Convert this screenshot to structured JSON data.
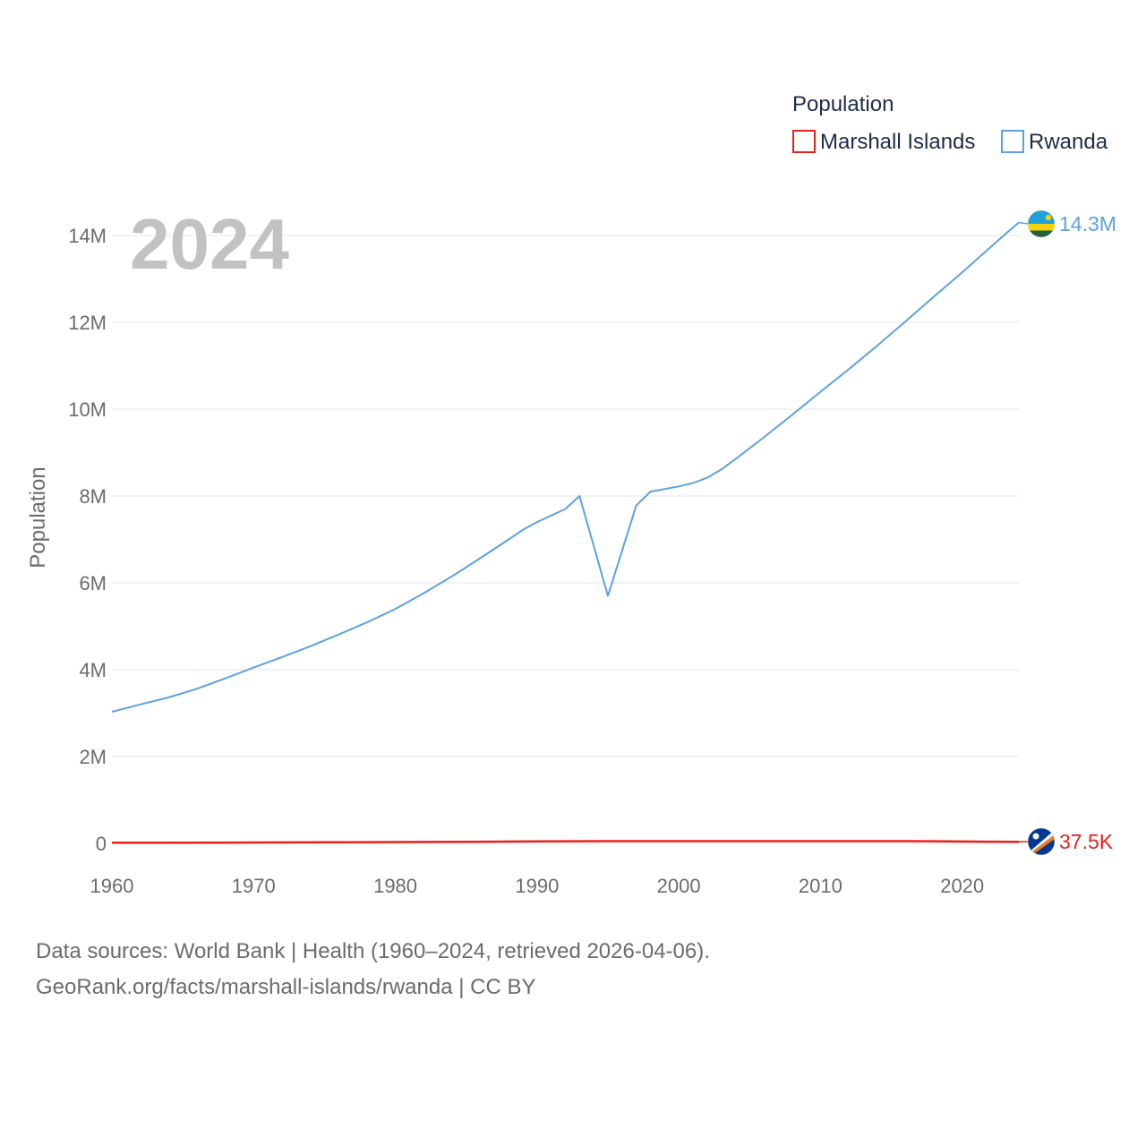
{
  "chart_data": {
    "type": "line",
    "legend_title": "Population",
    "ylabel": "Population",
    "year_label": "2024",
    "ylim": [
      0,
      14000000
    ],
    "xlim": [
      1960,
      2024
    ],
    "y_ticks": [
      {
        "value": 0,
        "label": "0"
      },
      {
        "value": 2000000,
        "label": "2M"
      },
      {
        "value": 4000000,
        "label": "4M"
      },
      {
        "value": 6000000,
        "label": "6M"
      },
      {
        "value": 8000000,
        "label": "8M"
      },
      {
        "value": 10000000,
        "label": "10M"
      },
      {
        "value": 12000000,
        "label": "12M"
      },
      {
        "value": 14000000,
        "label": "14M"
      }
    ],
    "x_ticks": [
      {
        "value": 1960,
        "label": "1960"
      },
      {
        "value": 1970,
        "label": "1970"
      },
      {
        "value": 1980,
        "label": "1980"
      },
      {
        "value": 1990,
        "label": "1990"
      },
      {
        "value": 2000,
        "label": "2000"
      },
      {
        "value": 2010,
        "label": "2010"
      },
      {
        "value": 2020,
        "label": "2020"
      }
    ],
    "series": [
      {
        "name": "Marshall Islands",
        "color": "#e8211d",
        "end_label": "37.5K",
        "flag": "marshall-islands-flag",
        "x": [
          1960,
          1965,
          1970,
          1975,
          1980,
          1985,
          1990,
          1995,
          2000,
          2005,
          2010,
          2015,
          2018,
          2020,
          2022,
          2024
        ],
        "values": [
          14700,
          17200,
          20400,
          25000,
          30900,
          38000,
          46800,
          51200,
          52200,
          51900,
          52400,
          51700,
          50100,
          43400,
          40000,
          37500
        ]
      },
      {
        "name": "Rwanda",
        "color": "#5ba2e0",
        "end_label": "14.3M",
        "flag": "rwanda-flag",
        "x": [
          1960,
          1962,
          1964,
          1966,
          1968,
          1970,
          1972,
          1974,
          1976,
          1978,
          1980,
          1982,
          1984,
          1986,
          1988,
          1989,
          1990,
          1992,
          1993,
          1995,
          1997,
          1998,
          2000,
          2001,
          2002,
          2003,
          2004,
          2006,
          2008,
          2010,
          2012,
          2014,
          2016,
          2018,
          2020,
          2022,
          2023,
          2024
        ],
        "values": [
          3030000,
          3200000,
          3360000,
          3560000,
          3800000,
          4050000,
          4290000,
          4540000,
          4810000,
          5090000,
          5400000,
          5760000,
          6150000,
          6570000,
          7000000,
          7220000,
          7400000,
          7700000,
          8000000,
          5700000,
          7780000,
          8100000,
          8220000,
          8300000,
          8420000,
          8610000,
          8850000,
          9350000,
          9870000,
          10400000,
          10920000,
          11460000,
          12020000,
          12590000,
          13150000,
          13730000,
          14020000,
          14300000
        ]
      }
    ]
  },
  "footer": {
    "sources": "Data sources: World Bank | Health (1960–2024, retrieved 2026-04-06).",
    "link": "GeoRank.org/facts/marshall-islands/rwanda | CC BY"
  }
}
